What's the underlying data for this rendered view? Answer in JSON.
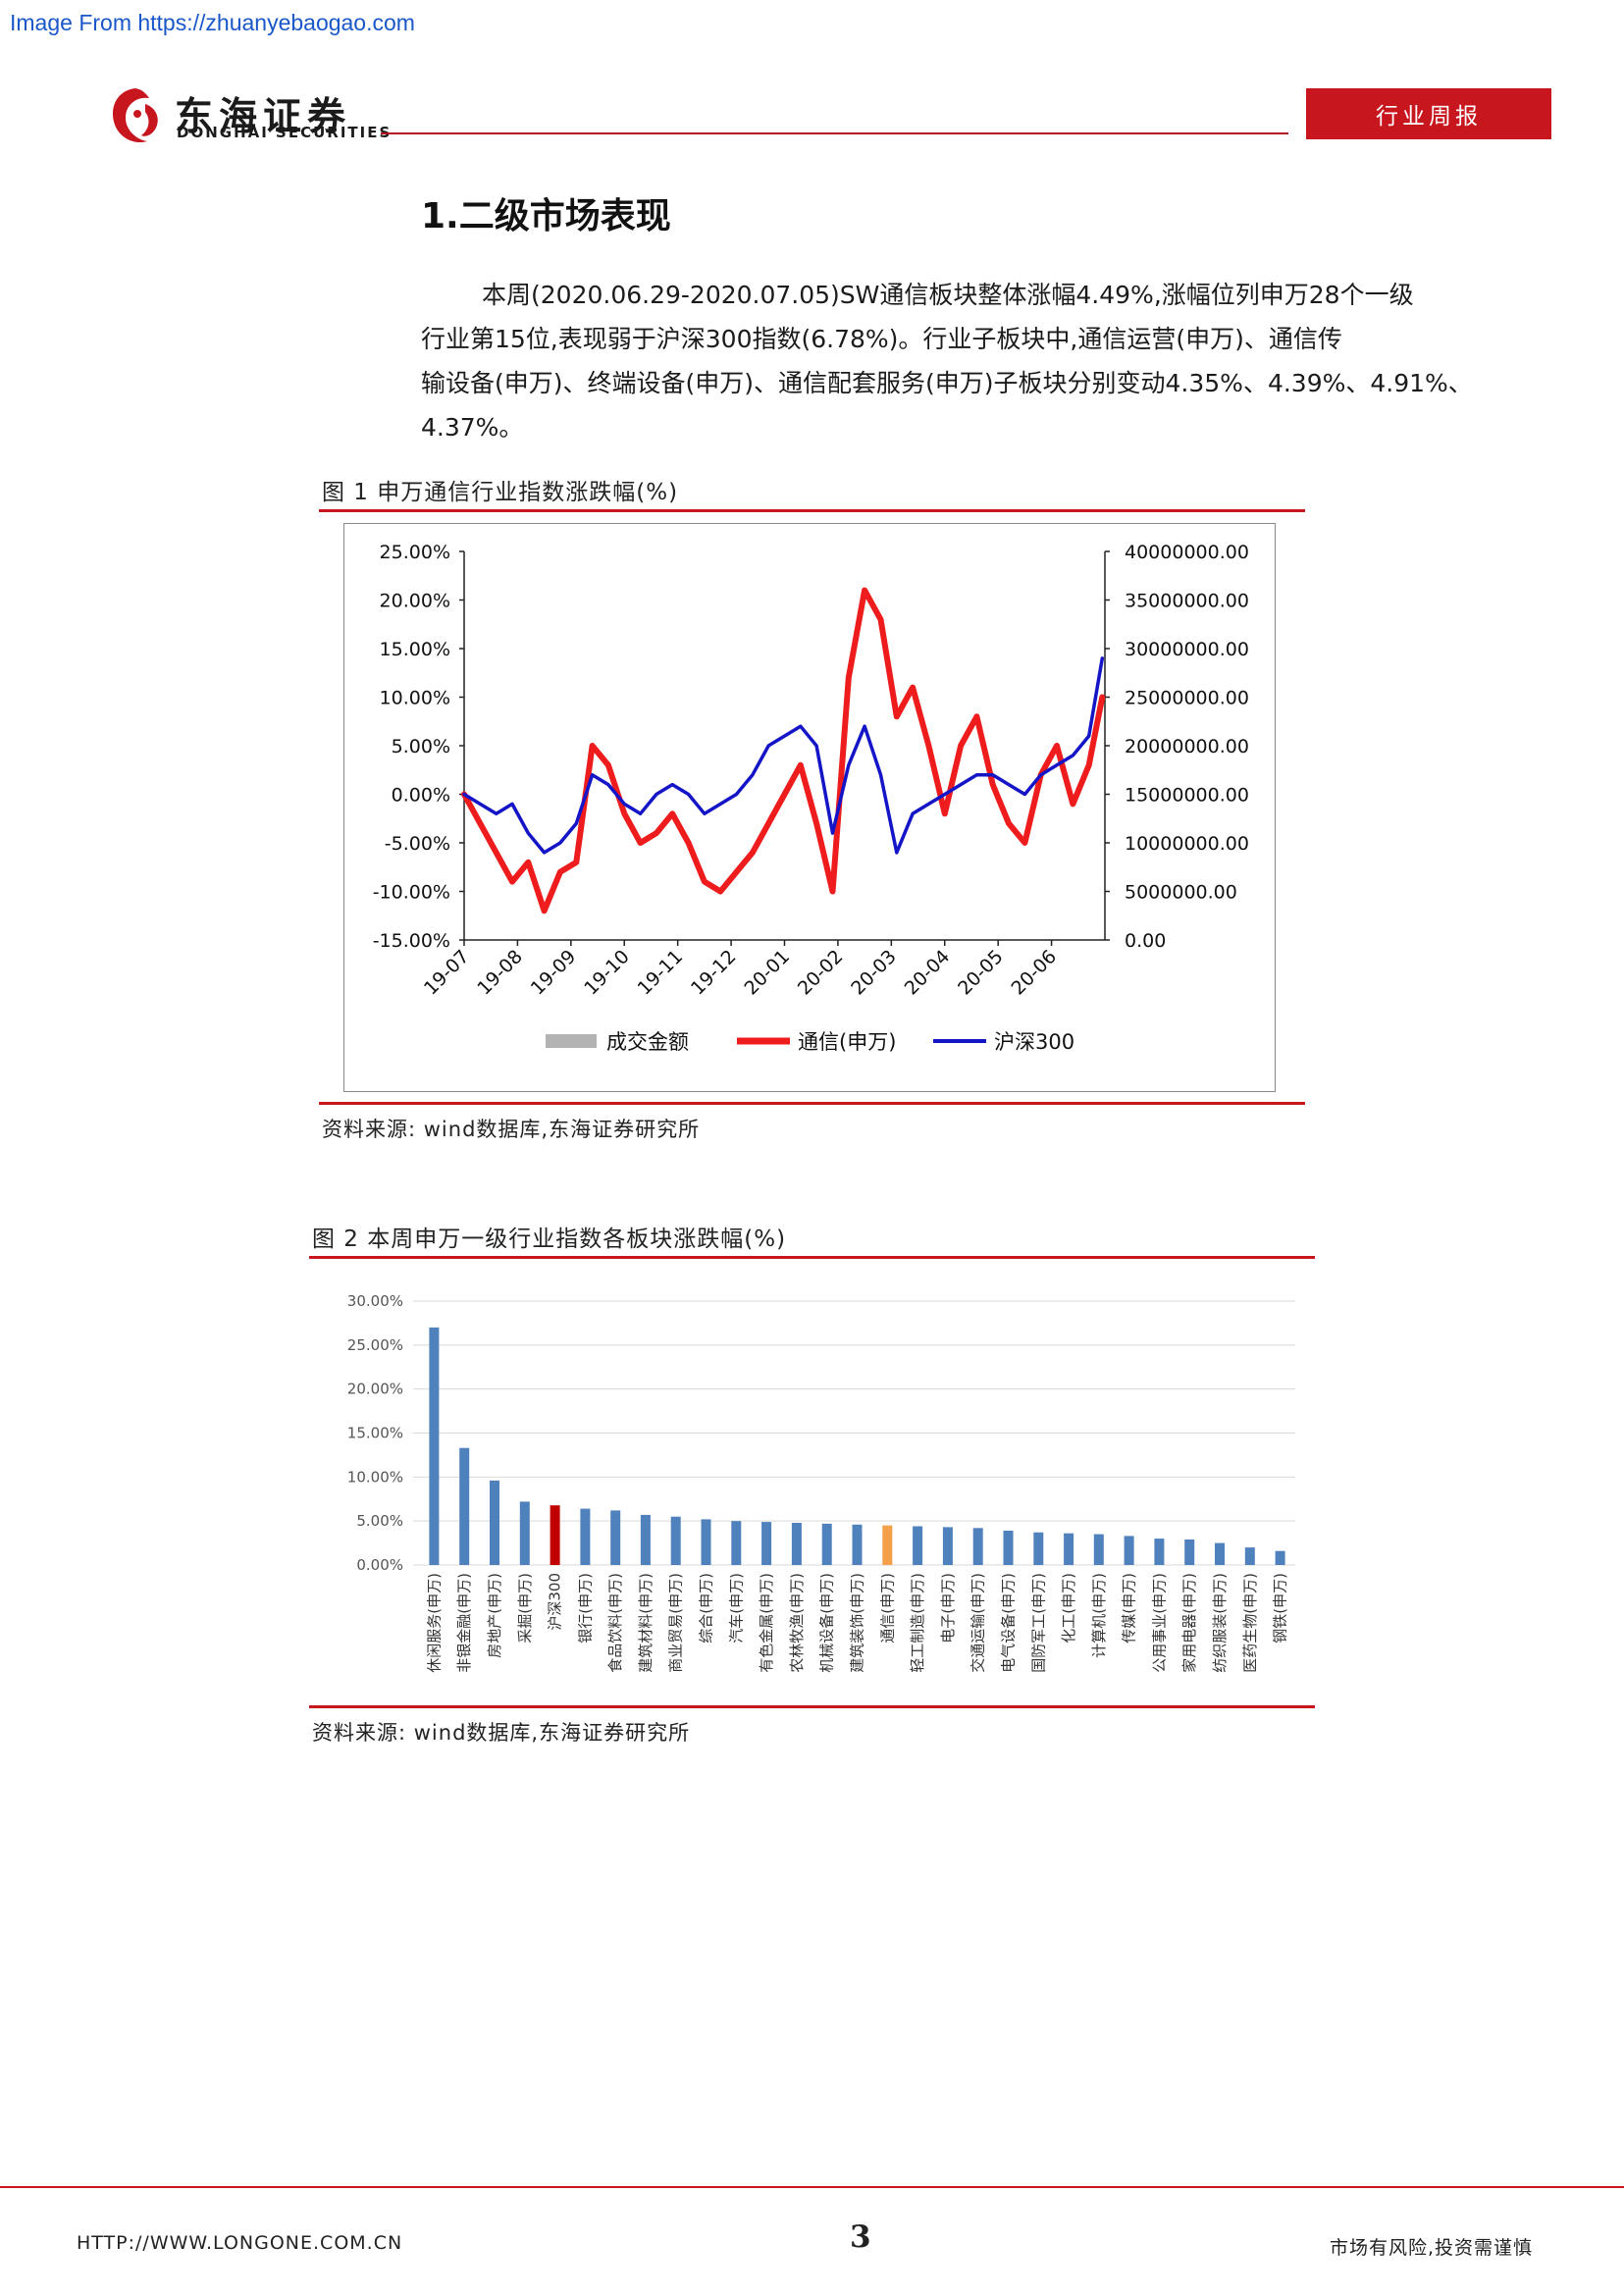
{
  "watermark": "Image From https://zhuanyebaogao.com",
  "brand": {
    "name_cn": "东海证券",
    "name_en": "DONGHAI SECURITIES"
  },
  "report_tag": "行业周报",
  "section": {
    "title": "1.二级市场表现",
    "paragraph_line1": "本周(2020.06.29-2020.07.05)SW通信板块整体涨幅4.49%,涨幅位列申万28个一级",
    "paragraph_line2": "行业第15位,表现弱于沪深300指数(6.78%)。行业子板块中,通信运营(申万)、通信传",
    "paragraph_line3": "输设备(申万)、终端设备(申万)、通信配套服务(申万)子板块分别变动4.35%、4.39%、4.91%、",
    "paragraph_line4": "4.37%。"
  },
  "figure1": {
    "title": "图 1 申万通信行业指数涨跌幅(%)",
    "source": "资料来源: wind数据库,东海证券研究所"
  },
  "figure2": {
    "title": "图 2 本周申万一级行业指数各板块涨跌幅(%)",
    "source": "资料来源: wind数据库,东海证券研究所"
  },
  "chart_data": [
    {
      "type": "line",
      "x_ticks": [
        "19-07",
        "19-08",
        "19-09",
        "19-10",
        "19-11",
        "19-12",
        "20-01",
        "20-02",
        "20-03",
        "20-04",
        "20-05",
        "20-06"
      ],
      "y_ticks_left": [
        "25.00%",
        "20.00%",
        "15.00%",
        "10.00%",
        "5.00%",
        "0.00%",
        "-5.00%",
        "-10.00%",
        "-15.00%"
      ],
      "y_ticks_right": [
        "40000000.00",
        "35000000.00",
        "30000000.00",
        "25000000.00",
        "20000000.00",
        "15000000.00",
        "10000000.00",
        "5000000.00",
        "0.00"
      ],
      "ylim_left": [
        -15,
        25
      ],
      "ylim_right": [
        0,
        40000000
      ],
      "legend": [
        "成交金额",
        "通信(申万)",
        "沪深300"
      ],
      "legend_position": "bottom",
      "colors": {
        "amount": "#b3b3b3",
        "telecom": "#ee1c1c",
        "csi300": "#1515c8"
      },
      "series": [
        {
          "name": "通信(申万)",
          "x": [
            0,
            0.3,
            0.6,
            0.9,
            1.2,
            1.5,
            1.8,
            2.1,
            2.4,
            2.7,
            3.0,
            3.3,
            3.6,
            3.9,
            4.2,
            4.5,
            4.8,
            5.1,
            5.4,
            5.7,
            6.0,
            6.3,
            6.6,
            6.9,
            7.2,
            7.5,
            7.8,
            8.1,
            8.4,
            8.7,
            9.0,
            9.3,
            9.6,
            9.9,
            10.2,
            10.5,
            10.8,
            11.1,
            11.4,
            11.7,
            11.95
          ],
          "values": [
            0,
            -3,
            -6,
            -9,
            -7,
            -12,
            -8,
            -7,
            5,
            3,
            -2,
            -5,
            -4,
            -2,
            -5,
            -9,
            -10,
            -8,
            -6,
            -3,
            0,
            3,
            -3,
            -10,
            12,
            21,
            18,
            8,
            11,
            5,
            -2,
            5,
            8,
            1,
            -3,
            -5,
            2,
            5,
            -1,
            3,
            10
          ]
        },
        {
          "name": "沪深300",
          "x": [
            0,
            0.3,
            0.6,
            0.9,
            1.2,
            1.5,
            1.8,
            2.1,
            2.4,
            2.7,
            3.0,
            3.3,
            3.6,
            3.9,
            4.2,
            4.5,
            4.8,
            5.1,
            5.4,
            5.7,
            6.0,
            6.3,
            6.6,
            6.9,
            7.2,
            7.5,
            7.8,
            8.1,
            8.4,
            8.7,
            9.0,
            9.3,
            9.6,
            9.9,
            10.2,
            10.5,
            10.8,
            11.1,
            11.4,
            11.7,
            11.95
          ],
          "values": [
            0,
            -1,
            -2,
            -1,
            -4,
            -6,
            -5,
            -3,
            2,
            1,
            -1,
            -2,
            0,
            1,
            0,
            -2,
            -1,
            0,
            2,
            5,
            6,
            7,
            5,
            -4,
            3,
            7,
            2,
            -6,
            -2,
            -1,
            0,
            1,
            2,
            2,
            1,
            0,
            2,
            3,
            4,
            6,
            14
          ]
        },
        {
          "name": "成交金额",
          "x": [],
          "values": []
        }
      ]
    },
    {
      "type": "bar",
      "categories": [
        "休闲服务(申万)",
        "非银金融(申万)",
        "房地产(申万)",
        "采掘(申万)",
        "沪深300",
        "银行(申万)",
        "食品饮料(申万)",
        "建筑材料(申万)",
        "商业贸易(申万)",
        "综合(申万)",
        "汽车(申万)",
        "有色金属(申万)",
        "农林牧渔(申万)",
        "机械设备(申万)",
        "建筑装饰(申万)",
        "通信(申万)",
        "轻工制造(申万)",
        "电子(申万)",
        "交通运输(申万)",
        "电气设备(申万)",
        "国防军工(申万)",
        "化工(申万)",
        "计算机(申万)",
        "传媒(申万)",
        "公用事业(申万)",
        "家用电器(申万)",
        "纺织服装(申万)",
        "医药生物(申万)",
        "钢铁(申万)"
      ],
      "values": [
        27.0,
        13.3,
        9.6,
        7.2,
        6.78,
        6.4,
        6.2,
        5.7,
        5.5,
        5.2,
        5.0,
        4.9,
        4.8,
        4.7,
        4.6,
        4.49,
        4.4,
        4.3,
        4.2,
        3.9,
        3.7,
        3.6,
        3.5,
        3.3,
        3.0,
        2.9,
        2.5,
        2.0,
        1.6
      ],
      "highlight": {
        "沪深300": "#c00000",
        "通信(申万)": "#f4a04a"
      },
      "bar_color": "#4f81bd",
      "y_ticks": [
        "30.00%",
        "25.00%",
        "20.00%",
        "15.00%",
        "10.00%",
        "5.00%",
        "0.00%"
      ],
      "ylim": [
        0,
        30
      ],
      "grid": true
    }
  ],
  "footer": {
    "url": "HTTP://WWW.LONGONE.COM.CN",
    "page": "3",
    "risk": "市场有风险,投资需谨慎"
  }
}
